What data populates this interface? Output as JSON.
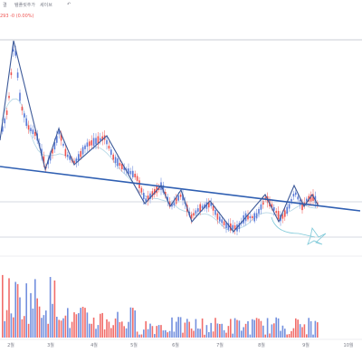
{
  "toolbar": {
    "items": [
      "결",
      "템플릿추가",
      "세이브",
      "↶"
    ]
  },
  "ohlc_text": "293 -0 (0.00%)",
  "colors": {
    "up": "#ef5350",
    "down": "#5b7bd8",
    "pattern": "#3d5a99",
    "trend": "#2f5fb2",
    "ma": "#b9d9e6",
    "level": "#c9cdd6",
    "sketch": "#7cc8d8"
  },
  "chart_data": {
    "type": "candlestick",
    "x_axis_labels": [
      "2월",
      "3월",
      "4월",
      "5월",
      "6월",
      "7월",
      "8월",
      "9월",
      "10월"
    ],
    "volume_panel": true,
    "drawings": [
      "zigzag pattern lines",
      "descending trendline",
      "horizontal level lines",
      "hand-drawn sketch"
    ]
  }
}
